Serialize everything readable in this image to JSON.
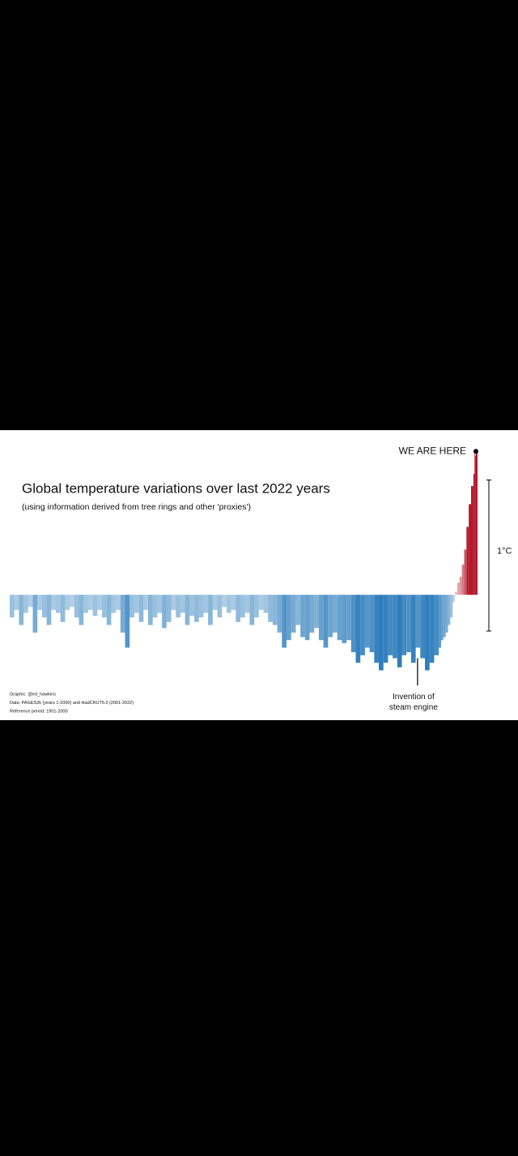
{
  "chart_data": {
    "type": "bar",
    "title": "Global temperature variations over last 2022 years",
    "subtitle": "(using information derived from tree rings and other 'proxies')",
    "x": [
      1,
      21,
      41,
      61,
      81,
      101,
      121,
      141,
      161,
      181,
      201,
      221,
      241,
      261,
      281,
      301,
      321,
      341,
      361,
      381,
      401,
      421,
      441,
      461,
      481,
      501,
      521,
      541,
      561,
      581,
      601,
      621,
      641,
      661,
      681,
      701,
      721,
      741,
      761,
      781,
      801,
      821,
      841,
      861,
      881,
      901,
      921,
      941,
      961,
      981,
      1001,
      1021,
      1041,
      1061,
      1081,
      1101,
      1121,
      1141,
      1161,
      1181,
      1201,
      1221,
      1241,
      1261,
      1281,
      1301,
      1321,
      1341,
      1361,
      1381,
      1401,
      1421,
      1441,
      1461,
      1481,
      1501,
      1521,
      1541,
      1561,
      1581,
      1601,
      1621,
      1641,
      1661,
      1681,
      1701,
      1721,
      1741,
      1761,
      1781,
      1801,
      1821,
      1841,
      1861,
      1871,
      1881,
      1891,
      1901,
      1911,
      1921,
      1931,
      1941,
      1951,
      1961,
      1971,
      1981,
      1991,
      2001,
      2011,
      2016,
      2019,
      2022
    ],
    "values": [
      -0.15,
      -0.1,
      -0.2,
      -0.12,
      -0.08,
      -0.25,
      -0.1,
      -0.15,
      -0.2,
      -0.1,
      -0.12,
      -0.18,
      -0.1,
      -0.08,
      -0.15,
      -0.2,
      -0.12,
      -0.1,
      -0.14,
      -0.1,
      -0.15,
      -0.2,
      -0.12,
      -0.1,
      -0.25,
      -0.35,
      -0.15,
      -0.12,
      -0.18,
      -0.1,
      -0.2,
      -0.15,
      -0.12,
      -0.22,
      -0.18,
      -0.1,
      -0.15,
      -0.12,
      -0.2,
      -0.14,
      -0.18,
      -0.15,
      -0.12,
      -0.2,
      -0.1,
      -0.15,
      -0.08,
      -0.12,
      -0.1,
      -0.18,
      -0.15,
      -0.12,
      -0.2,
      -0.15,
      -0.1,
      -0.12,
      -0.18,
      -0.2,
      -0.25,
      -0.35,
      -0.3,
      -0.25,
      -0.2,
      -0.28,
      -0.3,
      -0.25,
      -0.22,
      -0.3,
      -0.35,
      -0.28,
      -0.25,
      -0.3,
      -0.32,
      -0.3,
      -0.38,
      -0.45,
      -0.4,
      -0.35,
      -0.38,
      -0.45,
      -0.5,
      -0.45,
      -0.4,
      -0.42,
      -0.48,
      -0.4,
      -0.38,
      -0.45,
      -0.35,
      -0.42,
      -0.5,
      -0.45,
      -0.4,
      -0.35,
      -0.3,
      -0.28,
      -0.25,
      -0.2,
      -0.15,
      -0.05,
      0.02,
      0.08,
      0.12,
      0.2,
      0.3,
      0.45,
      0.6,
      0.72,
      0.8,
      0.95,
      0.92,
      0.95
    ],
    "negative_color": "#2e7ebc",
    "positive_color": "#b2182b",
    "xlim": [
      1,
      2022
    ],
    "ylim": [
      -0.83,
      1.09
    ],
    "scale_bar": {
      "label": "1°C",
      "from": -0.24,
      "to": 0.76
    },
    "marker": {
      "text": "WE ARE HERE"
    },
    "annotation": {
      "lines": [
        "Invention of",
        "steam engine"
      ],
      "x": 1769,
      "from": -0.42,
      "to": -0.6
    },
    "credits": [
      "Graphic: @ed_hawkins",
      "Data: PAGES2k (years 1-2000) and HadCRUT5.0 (2001-2022)",
      "Reference period: 1901-2000"
    ]
  }
}
